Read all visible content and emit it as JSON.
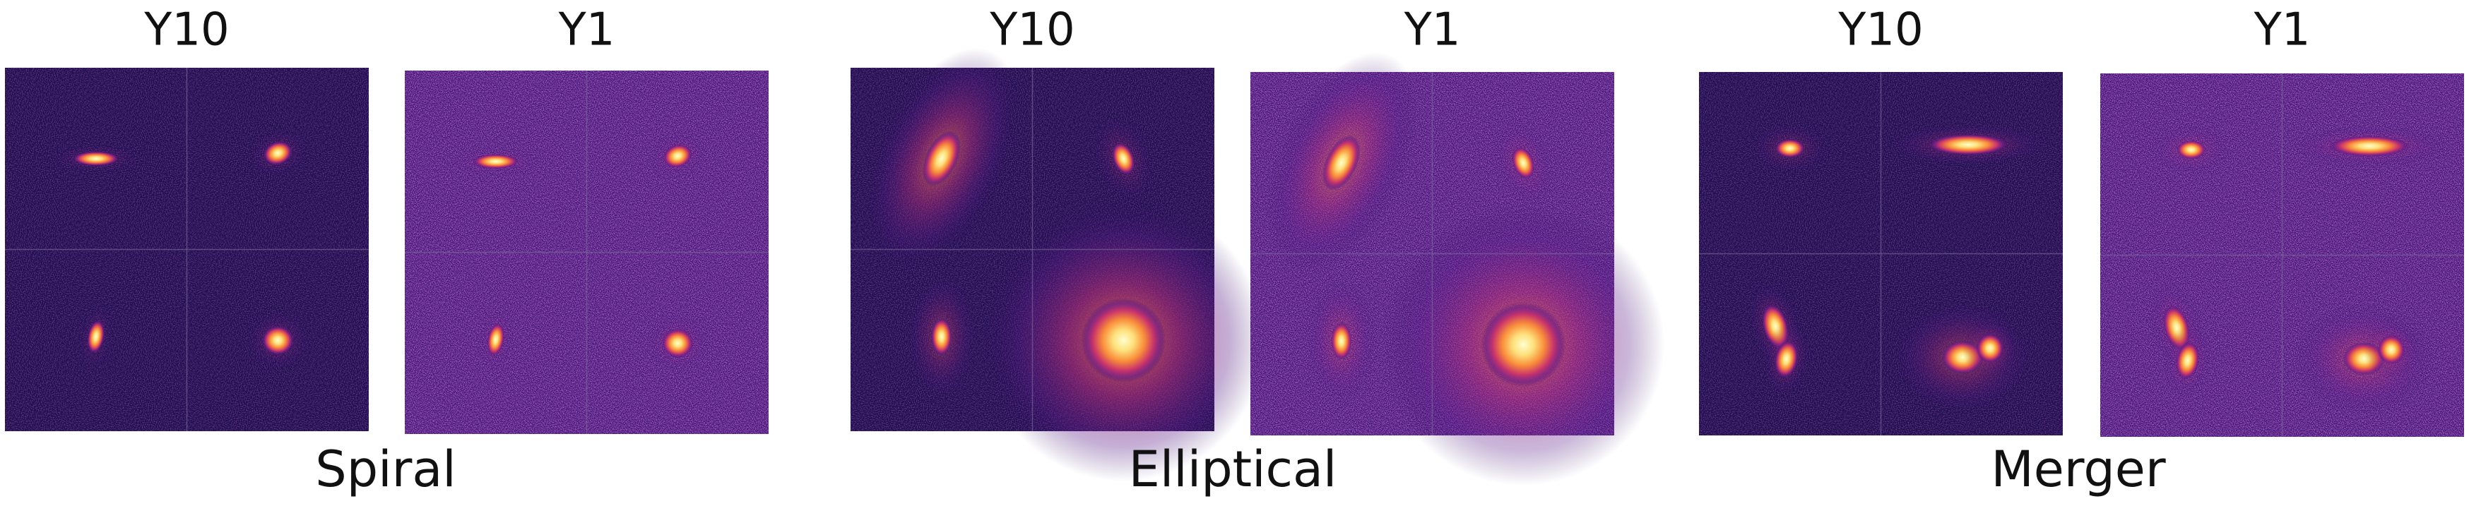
{
  "groups": [
    {
      "label": "Spiral",
      "panels": [
        {
          "title": "Y10"
        },
        {
          "title": "Y1"
        }
      ]
    },
    {
      "label": "Elliptical",
      "panels": [
        {
          "title": "Y10"
        },
        {
          "title": "Y1"
        }
      ]
    },
    {
      "label": "Merger",
      "panels": [
        {
          "title": "Y10"
        },
        {
          "title": "Y1"
        }
      ]
    }
  ]
}
